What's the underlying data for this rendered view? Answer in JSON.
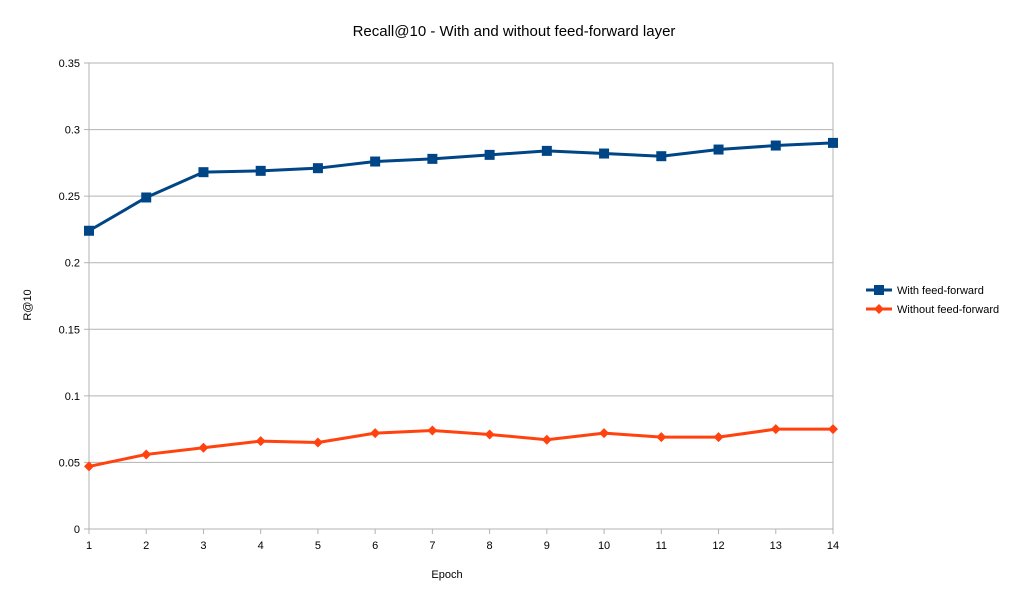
{
  "chart_data": {
    "type": "line",
    "title": "Recall@10 - With and without feed-forward layer",
    "xlabel": "Epoch",
    "ylabel": "R@10",
    "x": [
      1,
      2,
      3,
      4,
      5,
      6,
      7,
      8,
      9,
      10,
      11,
      12,
      13,
      14
    ],
    "ylim": [
      0,
      0.35
    ],
    "yticks": [
      0,
      0.05,
      0.1,
      0.15,
      0.2,
      0.25,
      0.3,
      0.35
    ],
    "grid": "horizontal",
    "legend_position": "right",
    "series": [
      {
        "name": "With feed-forward",
        "color": "#004586",
        "marker": "square",
        "values": [
          0.224,
          0.249,
          0.268,
          0.269,
          0.271,
          0.276,
          0.278,
          0.281,
          0.284,
          0.282,
          0.28,
          0.285,
          0.288,
          0.29
        ]
      },
      {
        "name": "Without feed-forward",
        "color": "#ff420e",
        "marker": "diamond",
        "values": [
          0.047,
          0.056,
          0.061,
          0.066,
          0.065,
          0.072,
          0.074,
          0.071,
          0.067,
          0.072,
          0.069,
          0.069,
          0.075,
          0.075
        ]
      }
    ]
  }
}
